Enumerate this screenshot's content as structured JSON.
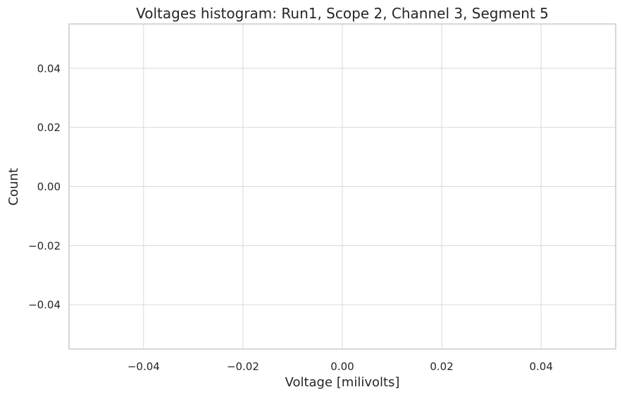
{
  "chart_data": {
    "type": "bar",
    "title": "Voltages histogram: Run1, Scope 2, Channel 3, Segment 5",
    "xlabel": "Voltage [milivolts]",
    "ylabel": "Count",
    "xlim": [
      -0.055,
      0.055
    ],
    "ylim": [
      -0.055,
      0.055
    ],
    "x_ticks": [
      -0.04,
      -0.02,
      0.0,
      0.02,
      0.04
    ],
    "x_tick_labels": [
      "−0.04",
      "−0.02",
      "0.00",
      "0.02",
      "0.04"
    ],
    "y_ticks": [
      0.04,
      0.02,
      0.0,
      -0.02,
      -0.04
    ],
    "y_tick_labels": [
      "0.04",
      "0.02",
      "0.00",
      "−0.02",
      "−0.04"
    ],
    "grid": true,
    "legend": "none",
    "values": [],
    "colors": {
      "grid": "#d9d9d9",
      "frame": "#cccccc",
      "text": "#262626",
      "background": "#ffffff"
    }
  }
}
